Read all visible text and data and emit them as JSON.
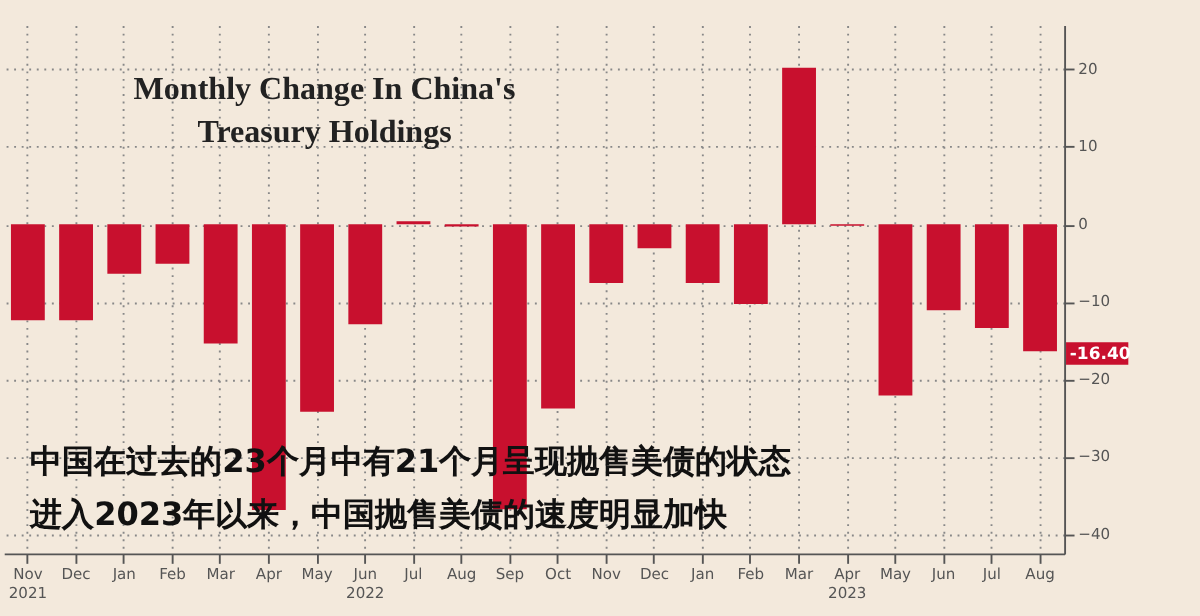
{
  "chart_data": {
    "type": "bar",
    "title": "Monthly Change In China's Treasury Holdings",
    "categories": [
      "Nov 2021",
      "Dec",
      "Jan",
      "Feb",
      "Mar",
      "Apr",
      "May",
      "Jun 2022",
      "Jul",
      "Aug",
      "Sep",
      "Oct",
      "Nov",
      "Dec",
      "Jan",
      "Feb",
      "Mar",
      "Apr 2023",
      "May",
      "Jun",
      "Jul",
      "Aug"
    ],
    "values": [
      -12.4,
      -12.4,
      -6.4,
      -5.1,
      -15.4,
      -36.9,
      -24.2,
      -12.9,
      0.4,
      -0.3,
      -36.8,
      -23.8,
      -7.6,
      -3.1,
      -7.6,
      -10.3,
      20.2,
      -0.2,
      -22.1,
      -11.1,
      -13.4,
      -16.4
    ],
    "color": "#c8102e",
    "ylim": [
      -42.5,
      25.7
    ],
    "yticks": [
      -40,
      -30,
      -20,
      -10,
      0,
      10,
      20
    ],
    "grid": true,
    "annotations": [
      "-16.40",
      "中国在过去的23个月中有21个月呈现抛售美债的状态",
      "进入2023年以来，中国抛售美债的速度明显加快"
    ]
  }
}
